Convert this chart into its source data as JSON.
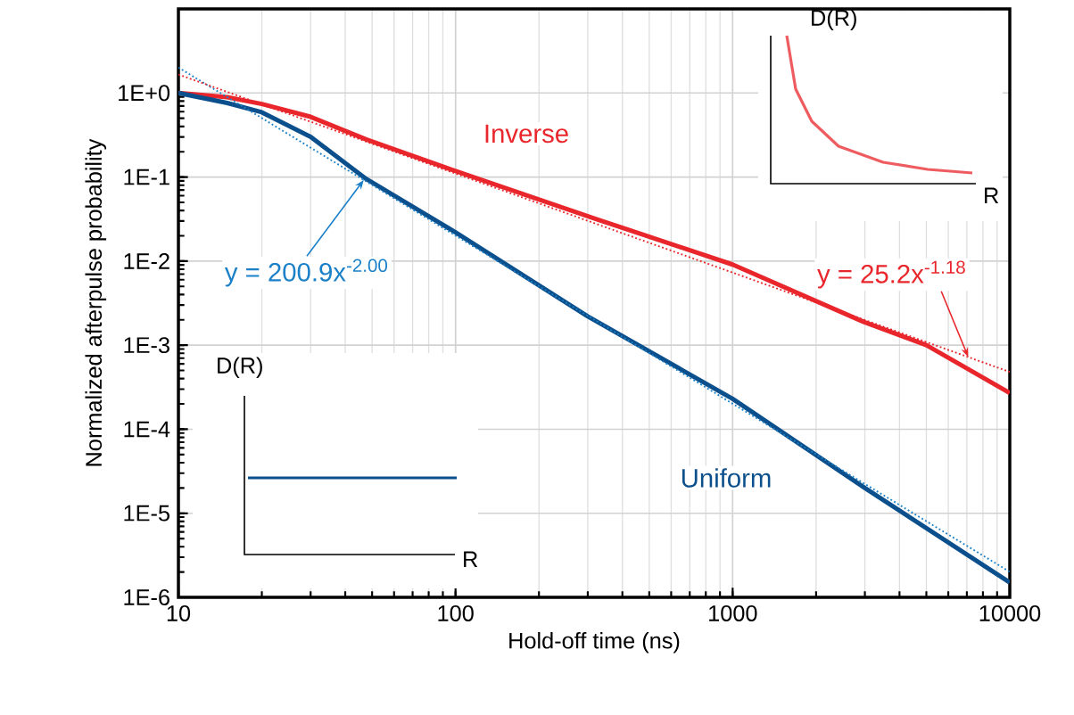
{
  "chart_data": {
    "type": "line",
    "xlabel": "Hold-off time (ns)",
    "ylabel": "Normalized afterpulse probability",
    "log": "xy",
    "grid": true,
    "marker": "none",
    "xlim": [
      10,
      10000
    ],
    "ylim": [
      1e-06,
      10
    ],
    "xticks": [
      10,
      100,
      1000,
      10000
    ],
    "yticks": [
      {
        "value": 1e-06,
        "label": "1E-6"
      },
      {
        "value": 1e-05,
        "label": "1E-5"
      },
      {
        "value": 0.0001,
        "label": "1E-4"
      },
      {
        "value": 0.001,
        "label": "1E-3"
      },
      {
        "value": 0.01,
        "label": "1E-2"
      },
      {
        "value": 0.1,
        "label": "1E-1"
      },
      {
        "value": 1,
        "label": "1E+0"
      }
    ],
    "series": [
      {
        "name": "Inverse",
        "color": "#e8262b",
        "line_style": "solid",
        "x": [
          10,
          15,
          20,
          30,
          47.6,
          93,
          328,
          1000,
          2960,
          5000,
          10000
        ],
        "values": [
          1,
          0.89,
          0.74,
          0.52,
          0.28,
          0.128,
          0.031,
          0.0091,
          0.0019,
          0.001,
          0.00027
        ]
      },
      {
        "name": "Uniform",
        "color": "#0b4f8c",
        "line_style": "solid",
        "x": [
          10,
          15,
          20,
          30,
          47.6,
          100,
          300,
          1000,
          3000,
          10000
        ],
        "values": [
          1,
          0.76,
          0.59,
          0.3,
          0.095,
          0.022,
          0.0022,
          0.00023,
          2e-05,
          1.5e-06
        ]
      },
      {
        "name": "y = 200.9x$^{-2.00}$",
        "color": "#1a80c8",
        "line_style": "dotted",
        "x": [
          10,
          100,
          1000,
          10000
        ],
        "values": [
          2.01,
          0.0201,
          0.000201,
          2.01e-06
        ]
      },
      {
        "name": "y = 25.2x$^{-1.18}$",
        "color": "#e8262b",
        "line_style": "dotted",
        "x": [
          10,
          100,
          1000,
          10000
        ],
        "values": [
          1.66,
          0.11,
          0.0073,
          0.00048
        ]
      }
    ],
    "annotations": [
      "D(R)",
      "R",
      "D(R)",
      "R"
    ]
  }
}
